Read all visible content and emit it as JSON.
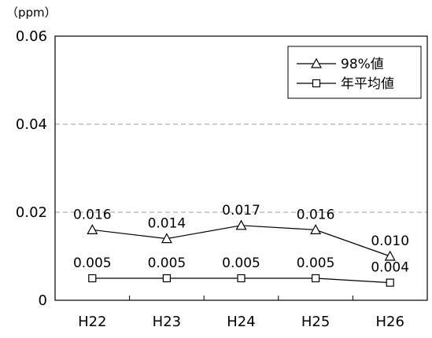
{
  "chart_data": {
    "type": "line",
    "unit_label": "（ppm）",
    "categories": [
      "H22",
      "H23",
      "H24",
      "H25",
      "H26"
    ],
    "ylim": [
      0,
      0.06
    ],
    "yticks": [
      "0",
      "0.02",
      "0.04",
      "0.06"
    ],
    "ytick_values": [
      0,
      0.02,
      0.04,
      0.06
    ],
    "grid": "dashed horizontal at 0.02 and 0.04",
    "legend_position": "top-right",
    "series": [
      {
        "name": "98%値",
        "marker": "triangle",
        "values": [
          0.016,
          0.014,
          0.017,
          0.016,
          0.01
        ],
        "labels": [
          "0.016",
          "0.014",
          "0.017",
          "0.016",
          "0.010"
        ]
      },
      {
        "name": "年平均値",
        "marker": "square",
        "values": [
          0.005,
          0.005,
          0.005,
          0.005,
          0.004
        ],
        "labels": [
          "0.005",
          "0.005",
          "0.005",
          "0.005",
          "0.004"
        ]
      }
    ]
  }
}
